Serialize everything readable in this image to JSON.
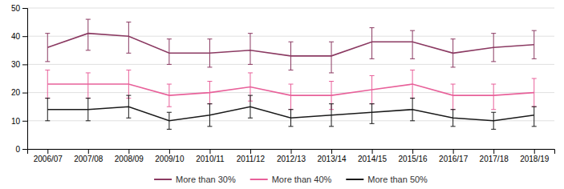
{
  "chart_data": {
    "type": "line",
    "categories": [
      "2006/07",
      "2007/08",
      "2008/09",
      "2009/10",
      "2010/11",
      "2011/12",
      "2012/13",
      "2013/14",
      "2014/15",
      "2015/16",
      "2016/17",
      "2017/18",
      "2018/19"
    ],
    "series": [
      {
        "name": "More than 30%",
        "color": "#8B3A62",
        "values": [
          36,
          41,
          40,
          34,
          34,
          35,
          33,
          33,
          38,
          38,
          34,
          36,
          37
        ],
        "err_lo": [
          5,
          6,
          6,
          4,
          5,
          5,
          5,
          6,
          6,
          6,
          5,
          5,
          5
        ],
        "err_hi": [
          5,
          5,
          5,
          5,
          5,
          6,
          5,
          5,
          5,
          4,
          5,
          5,
          5
        ]
      },
      {
        "name": "More than 40%",
        "color": "#E8619A",
        "values": [
          23,
          23,
          23,
          19,
          20,
          22,
          19,
          19,
          21,
          23,
          19,
          19,
          20
        ],
        "err_lo": [
          5,
          5,
          5,
          4,
          4,
          5,
          5,
          5,
          5,
          5,
          5,
          5,
          5
        ],
        "err_hi": [
          5,
          4,
          5,
          4,
          4,
          5,
          4,
          5,
          5,
          5,
          4,
          4,
          5
        ]
      },
      {
        "name": "More than 50%",
        "color": "#1a1a1a",
        "values": [
          14,
          14,
          15,
          10,
          12,
          15,
          11,
          12,
          13,
          14,
          11,
          10,
          12
        ],
        "err_lo": [
          4,
          4,
          4,
          3,
          4,
          4,
          3,
          4,
          4,
          4,
          3,
          3,
          4
        ],
        "err_hi": [
          4,
          4,
          4,
          3,
          4,
          4,
          3,
          4,
          3,
          4,
          3,
          3,
          3
        ]
      }
    ],
    "ylim": [
      0,
      50
    ],
    "yticks": [
      0,
      10,
      20,
      30,
      40,
      50
    ],
    "grid": true,
    "legend": "bottom"
  }
}
